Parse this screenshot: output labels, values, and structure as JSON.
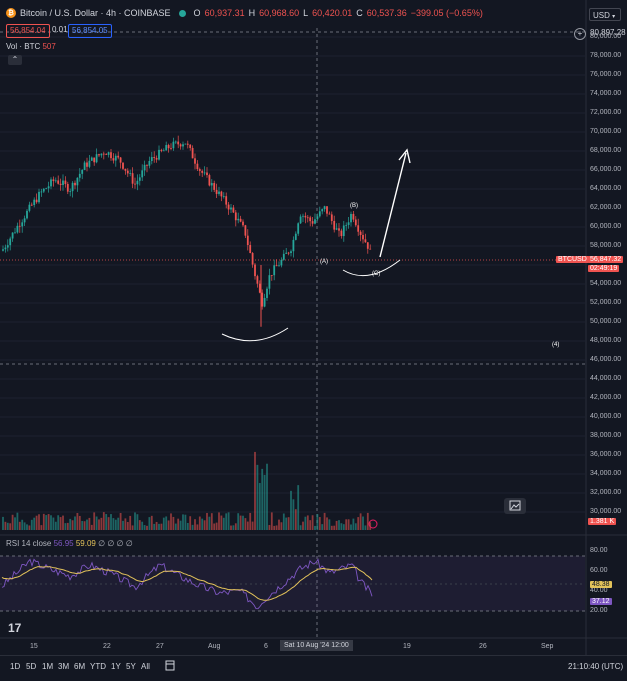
{
  "header": {
    "logo_symbol": "₿",
    "title": "Bitcoin / U.S. Dollar · 4h · COINBASE",
    "status_color": "#26a69a",
    "open_label": "O",
    "open_value": "60,937.31",
    "high_label": "H",
    "high_value": "60,968.60",
    "low_label": "L",
    "low_value": "60,420.01",
    "close_label": "C",
    "close_value": "60,537.36",
    "change": "−399.05 (−0.65%)",
    "sell_price": "56,854.04",
    "spread": "0.01",
    "buy_price": "56,854.05",
    "currency": "USD"
  },
  "volume": {
    "label": "Vol · BTC",
    "value": "507",
    "axis_tag": "1.381 K"
  },
  "price_axis": {
    "crosshair_price": "80,897.28",
    "labels": [
      "80,000.00",
      "78,000.00",
      "76,000.00",
      "74,000.00",
      "72,000.00",
      "70,000.00",
      "68,000.00",
      "66,000.00",
      "64,000.00",
      "62,000.00",
      "60,000.00",
      "58,000.00",
      "54,000.00",
      "52,000.00",
      "50,000.00",
      "48,000.00",
      "46,000.00",
      "44,000.00",
      "42,000.00",
      "40,000.00",
      "38,000.00",
      "36,000.00",
      "34,000.00",
      "32,000.00",
      "30,000.00"
    ],
    "symbol_tag": "BTCUSD",
    "current_price": "56,847.32",
    "countdown": "02:49:19"
  },
  "annotations": {
    "wave_a": "(A)",
    "wave_b": "(B)",
    "wave_c": "(C)",
    "wave_4": "(4)"
  },
  "rsi": {
    "label": "RSI 14 close",
    "value1": "56.95",
    "value2": "59.09",
    "empties": "∅ ∅ ∅ ∅",
    "axis_labels": [
      "80.00",
      "60.00",
      "40.00",
      "20.00"
    ],
    "tag_ma": "48.38",
    "tag_rsi": "37.12"
  },
  "time_axis": {
    "labels": [
      "15",
      "22",
      "27",
      "Aug",
      "6",
      "19",
      "26",
      "Sep"
    ],
    "crosshair_time": "Sat 10 Aug '24  12:00"
  },
  "timeframes": [
    "1D",
    "5D",
    "1M",
    "3M",
    "6M",
    "YTD",
    "1Y",
    "5Y",
    "All"
  ],
  "clock": "21:10:40 (UTC)",
  "colors": {
    "up": "#26a69a",
    "down": "#ef5350",
    "rsi": "#7e57c2",
    "rsi_ma": "#e2c25a",
    "background": "#131722"
  }
}
